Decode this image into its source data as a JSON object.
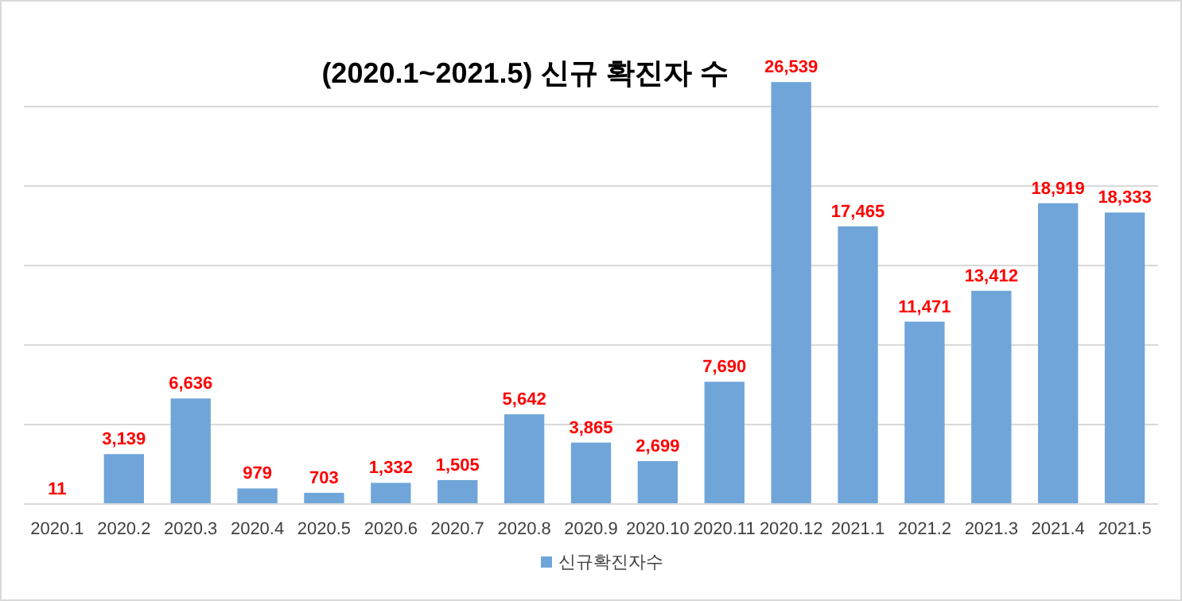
{
  "chart_data": {
    "type": "bar",
    "title": "(2020.1~2021.5) 신규 확진자 수",
    "categories": [
      "2020.1",
      "2020.2",
      "2020.3",
      "2020.4",
      "2020.5",
      "2020.6",
      "2020.7",
      "2020.8",
      "2020.9",
      "2020.10",
      "2020.11",
      "2020.12",
      "2021.1",
      "2021.2",
      "2021.3",
      "2021.4",
      "2021.5"
    ],
    "series": [
      {
        "name": "신규확진자수",
        "color": "#6fa5d9",
        "values": [
          11,
          3139,
          6636,
          979,
          703,
          1332,
          1505,
          5642,
          3865,
          2699,
          7690,
          26539,
          17465,
          11471,
          13412,
          18919,
          18333
        ],
        "value_labels": [
          "11",
          "3,139",
          "6,636",
          "979",
          "703",
          "1,332",
          "1,505",
          "5,642",
          "3,865",
          "2,699",
          "7,690",
          "26,539",
          "17,465",
          "11,471",
          "13,412",
          "18,919",
          "18,333"
        ]
      }
    ],
    "yticks": [
      {
        "value": 0,
        "label": null
      },
      {
        "value": 5000,
        "label": null
      },
      {
        "value": 10000,
        "label": null
      },
      {
        "value": 15000,
        "label": null
      },
      {
        "value": 20000,
        "label": null
      },
      {
        "value": 25000,
        "label": null
      }
    ],
    "grid": "y",
    "legend": "bottom",
    "tick_labels": "x"
  }
}
